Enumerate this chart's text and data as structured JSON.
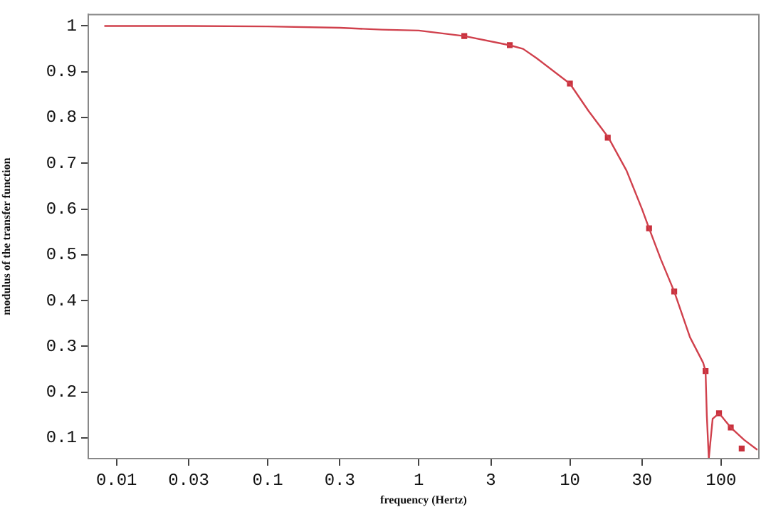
{
  "chart_data": {
    "type": "line",
    "xlabel": "frequency (Hertz)",
    "ylabel": "modulus of the transfer function",
    "log": "x",
    "grid": false,
    "legend": false,
    "xlim": [
      0.0065,
      178
    ],
    "ylim": [
      0.055,
      1.025
    ],
    "xticks": [
      0.01,
      0.03,
      0.1,
      0.3,
      1,
      3,
      10,
      30,
      100
    ],
    "yticks": [
      0.1,
      0.2,
      0.3,
      0.4,
      0.5,
      0.6,
      0.7,
      0.8,
      0.9,
      1
    ],
    "series": [
      {
        "type": "line",
        "marker": "none",
        "color": "#d0404c",
        "x": [
          0.0083,
          0.03,
          0.1,
          0.3,
          0.57,
          1,
          2,
          4,
          4.9,
          6,
          10,
          13.3,
          18,
          23.7,
          30,
          33.4,
          40,
          49,
          62.3,
          72,
          76.2,
          79,
          80.5,
          83,
          88,
          97,
          116,
          142,
          174
        ],
        "values": [
          1,
          1,
          0.999,
          0.996,
          0.992,
          0.99,
          0.978,
          0.958,
          0.95,
          0.93,
          0.874,
          0.814,
          0.756,
          0.684,
          0.6,
          0.558,
          0.49,
          0.42,
          0.32,
          0.28,
          0.264,
          0.246,
          0.15,
          0.055,
          0.142,
          0.154,
          0.123,
          0.096,
          0.074
        ]
      },
      {
        "type": "scatter",
        "marker": "square",
        "color": "#c8303c",
        "x": [
          2,
          4,
          10,
          17.8,
          33.4,
          49,
          79,
          97,
          116,
          137
        ],
        "values": [
          0.978,
          0.958,
          0.874,
          0.756,
          0.558,
          0.42,
          0.246,
          0.154,
          0.123,
          0.077
        ]
      }
    ]
  }
}
